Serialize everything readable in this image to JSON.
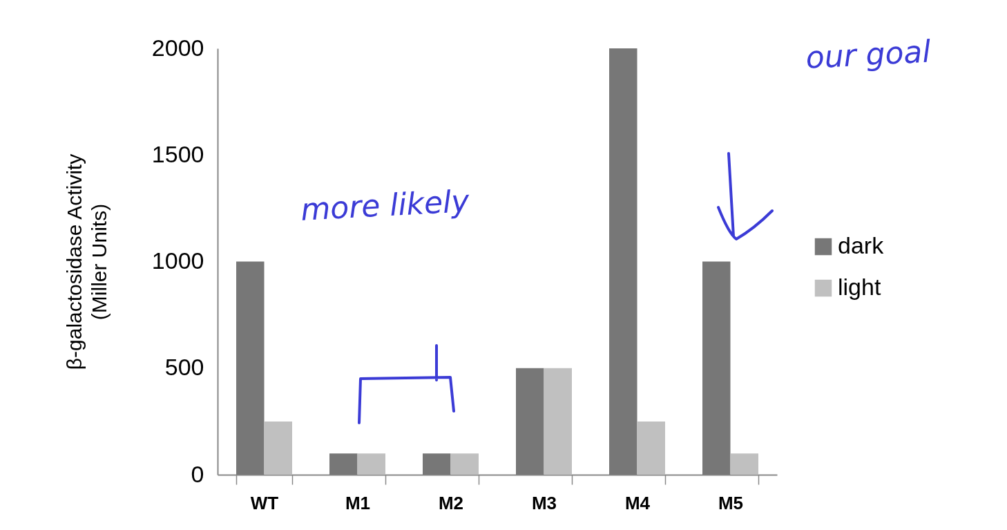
{
  "chart_data": {
    "type": "bar",
    "ylabel": "β-galactosidase Activity\n(Miller Units)",
    "categories": [
      "WT",
      "M1",
      "M2",
      "M3",
      "M4",
      "M5"
    ],
    "series": [
      {
        "name": "dark",
        "color": "#777777",
        "values": [
          1000,
          100,
          100,
          500,
          2000,
          1000
        ]
      },
      {
        "name": "light",
        "color": "#c0c0c0",
        "values": [
          250,
          100,
          100,
          500,
          250,
          100
        ]
      }
    ],
    "ylim": [
      0,
      2000
    ],
    "yticks": [
      0,
      500,
      1000,
      1500,
      2000
    ],
    "grid": false,
    "legend": "right",
    "annotations": [
      "more likely",
      "our goal"
    ]
  }
}
